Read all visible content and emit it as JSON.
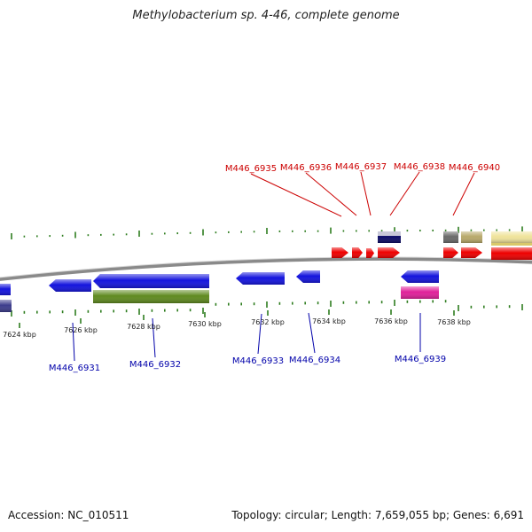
{
  "title": "Methylobacterium sp. 4-46, complete genome",
  "footer": {
    "accession": "Accession: NC_010511",
    "summary": "Topology: circular; Length: 7,659,055 bp; Genes: 6,691"
  },
  "colors": {
    "backbone": "#8a8a8a",
    "tick": "#2e7d1f",
    "top_label": "#cc0000",
    "bottom_label": "#0000aa",
    "gene_red": "#ee0000",
    "gene_blue": "#1414dd",
    "gene_olive": "#5f8a1f",
    "gene_navy": "#3c3c8c",
    "gene_magenta": "#e0209a",
    "gene_grey": "#6a6a6a",
    "gene_khaki": "#b7a86a",
    "gene_cream": "#efe39a",
    "gene_darkblue": "#0b0b66"
  },
  "axis": {
    "unit": "kbp",
    "ticks": [
      {
        "value": 7624,
        "label": "7624 kbp"
      },
      {
        "value": 7626,
        "label": "7626 kbp"
      },
      {
        "value": 7628,
        "label": "7628 kbp"
      },
      {
        "value": 7630,
        "label": "7630 kbp"
      },
      {
        "value": 7632,
        "label": "7632 kbp"
      },
      {
        "value": 7634,
        "label": "7634 kbp"
      },
      {
        "value": 7636,
        "label": "7636 kbp"
      },
      {
        "value": 7638,
        "label": "7638 kbp"
      }
    ]
  },
  "top_labels": [
    {
      "name": "M446_6935"
    },
    {
      "name": "M446_6936"
    },
    {
      "name": "M446_6937"
    },
    {
      "name": "M446_6938"
    },
    {
      "name": "M446_6940"
    }
  ],
  "bottom_labels": [
    {
      "name": "M446_6931"
    },
    {
      "name": "M446_6932"
    },
    {
      "name": "M446_6933"
    },
    {
      "name": "M446_6934"
    },
    {
      "name": "M446_6939"
    }
  ]
}
